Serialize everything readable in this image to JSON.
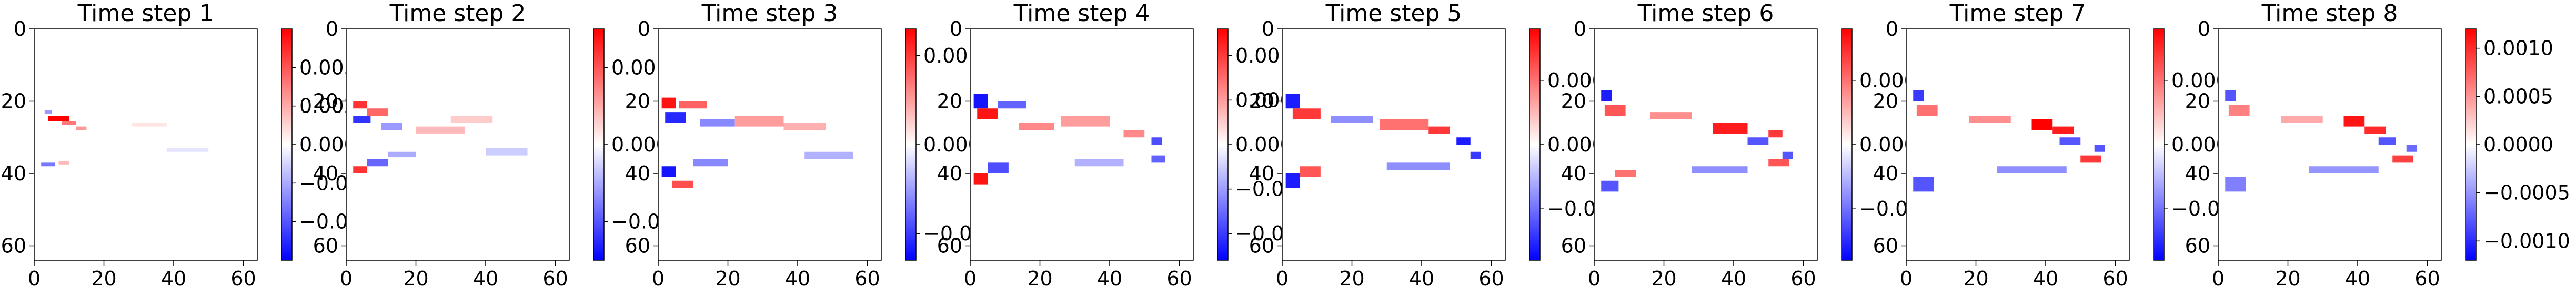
{
  "chart_data": {
    "type": "heatmap",
    "colormap": "bwr",
    "colors": {
      "negative": "#0000ff",
      "zero": "#ffffff",
      "positive": "#ff0000"
    },
    "xlim": [
      0,
      64
    ],
    "ylim": [
      64,
      0
    ],
    "x_ticks": [
      0,
      20,
      40,
      60
    ],
    "y_ticks": [
      0,
      20,
      40,
      60
    ],
    "grid": false,
    "panels": [
      {
        "title": "Time step 1",
        "vmin": -0.0075,
        "vmax": 0.0075,
        "colorbar_ticks": [
          5000,
          2500,
          0,
          -2500,
          -5000
        ],
        "colorbar_tick_labels": [
          "0.0050",
          "0.0025",
          "0.0000",
          "−0.0025",
          "−0.0050"
        ],
        "features": [
          {
            "x": 4,
            "y": 24,
            "w": 6,
            "h": 1.5,
            "v": 0.0075
          },
          {
            "x": 8,
            "y": 25.5,
            "w": 4,
            "h": 1,
            "v": 0.004
          },
          {
            "x": 12,
            "y": 27,
            "w": 3,
            "h": 1,
            "v": 0.003
          },
          {
            "x": 3,
            "y": 22.5,
            "w": 2,
            "h": 1,
            "v": -0.003
          },
          {
            "x": 2,
            "y": 37,
            "w": 4,
            "h": 1,
            "v": -0.004
          },
          {
            "x": 7,
            "y": 36.5,
            "w": 3,
            "h": 1,
            "v": 0.002
          },
          {
            "x": 28,
            "y": 26,
            "w": 10,
            "h": 1,
            "v": 0.0008
          },
          {
            "x": 38,
            "y": 33,
            "w": 12,
            "h": 1,
            "v": -0.0008
          }
        ]
      },
      {
        "title": "Time step 2",
        "vmin": -0.0015,
        "vmax": 0.0015,
        "colorbar_ticks": [
          10,
          0,
          -10
        ],
        "colorbar_tick_labels": [
          "0.001",
          "0.000",
          "−0.001"
        ],
        "features": [
          {
            "x": 2,
            "y": 20,
            "w": 4,
            "h": 2,
            "v": 0.0012
          },
          {
            "x": 2,
            "y": 24,
            "w": 5,
            "h": 2,
            "v": -0.0012
          },
          {
            "x": 6,
            "y": 22,
            "w": 6,
            "h": 2,
            "v": 0.0009
          },
          {
            "x": 10,
            "y": 26,
            "w": 6,
            "h": 2,
            "v": -0.0006
          },
          {
            "x": 2,
            "y": 38,
            "w": 4,
            "h": 2,
            "v": 0.0012
          },
          {
            "x": 6,
            "y": 36,
            "w": 6,
            "h": 2,
            "v": -0.0009
          },
          {
            "x": 12,
            "y": 34,
            "w": 8,
            "h": 1.5,
            "v": -0.0005
          },
          {
            "x": 20,
            "y": 27,
            "w": 14,
            "h": 2,
            "v": 0.0004
          },
          {
            "x": 30,
            "y": 24,
            "w": 12,
            "h": 2,
            "v": 0.0003
          },
          {
            "x": 40,
            "y": 33,
            "w": 12,
            "h": 2,
            "v": -0.0003
          }
        ]
      },
      {
        "title": "Time step 3",
        "vmin": -0.0013,
        "vmax": 0.0013,
        "colorbar_ticks": [
          10,
          0,
          -10
        ],
        "colorbar_tick_labels": [
          "0.0010",
          "0.0000",
          "−0.0010"
        ],
        "features": [
          {
            "x": 1,
            "y": 19,
            "w": 4,
            "h": 3,
            "v": 0.0012
          },
          {
            "x": 2,
            "y": 23,
            "w": 6,
            "h": 3,
            "v": -0.0011
          },
          {
            "x": 6,
            "y": 20,
            "w": 8,
            "h": 2,
            "v": 0.0008
          },
          {
            "x": 12,
            "y": 25,
            "w": 10,
            "h": 2,
            "v": -0.0006
          },
          {
            "x": 1,
            "y": 38,
            "w": 4,
            "h": 3,
            "v": -0.0012
          },
          {
            "x": 4,
            "y": 42,
            "w": 6,
            "h": 2,
            "v": 0.0009
          },
          {
            "x": 10,
            "y": 36,
            "w": 10,
            "h": 2,
            "v": -0.0006
          },
          {
            "x": 22,
            "y": 24,
            "w": 14,
            "h": 3,
            "v": 0.0005
          },
          {
            "x": 36,
            "y": 26,
            "w": 12,
            "h": 2,
            "v": 0.0004
          },
          {
            "x": 42,
            "y": 34,
            "w": 14,
            "h": 2,
            "v": -0.0004
          }
        ]
      },
      {
        "title": "Time step 4",
        "vmin": -0.0013,
        "vmax": 0.0013,
        "colorbar_ticks": [
          10,
          5,
          0,
          -5,
          -10
        ],
        "colorbar_tick_labels": [
          "0.0010",
          "0.0005",
          "0.0000",
          "−0.0005",
          "−0.0010"
        ],
        "features": [
          {
            "x": 1,
            "y": 18,
            "w": 4,
            "h": 4,
            "v": -0.0012
          },
          {
            "x": 2,
            "y": 22,
            "w": 6,
            "h": 3,
            "v": 0.0012
          },
          {
            "x": 8,
            "y": 20,
            "w": 8,
            "h": 2,
            "v": -0.0008
          },
          {
            "x": 1,
            "y": 40,
            "w": 4,
            "h": 3,
            "v": 0.0012
          },
          {
            "x": 5,
            "y": 37,
            "w": 6,
            "h": 3,
            "v": -0.0009
          },
          {
            "x": 14,
            "y": 26,
            "w": 10,
            "h": 2,
            "v": 0.0006
          },
          {
            "x": 26,
            "y": 24,
            "w": 14,
            "h": 3,
            "v": 0.0005
          },
          {
            "x": 44,
            "y": 28,
            "w": 6,
            "h": 2,
            "v": 0.0006
          },
          {
            "x": 52,
            "y": 30,
            "w": 3,
            "h": 2,
            "v": -0.0009
          },
          {
            "x": 52,
            "y": 35,
            "w": 4,
            "h": 2,
            "v": -0.0008
          },
          {
            "x": 30,
            "y": 36,
            "w": 14,
            "h": 2,
            "v": -0.0004
          }
        ]
      },
      {
        "title": "Time step 5",
        "vmin": -0.0009,
        "vmax": 0.0009,
        "colorbar_ticks": [
          5,
          0,
          -5
        ],
        "colorbar_tick_labels": [
          "0.0005",
          "0.0000",
          "−0.0005"
        ],
        "features": [
          {
            "x": 1,
            "y": 18,
            "w": 4,
            "h": 4,
            "v": -0.0008
          },
          {
            "x": 3,
            "y": 22,
            "w": 8,
            "h": 3,
            "v": 0.0007
          },
          {
            "x": 1,
            "y": 40,
            "w": 4,
            "h": 4,
            "v": -0.0008
          },
          {
            "x": 5,
            "y": 38,
            "w": 6,
            "h": 3,
            "v": 0.0006
          },
          {
            "x": 14,
            "y": 24,
            "w": 12,
            "h": 2,
            "v": -0.0004
          },
          {
            "x": 28,
            "y": 25,
            "w": 14,
            "h": 3,
            "v": 0.0005
          },
          {
            "x": 42,
            "y": 27,
            "w": 6,
            "h": 2,
            "v": 0.0007
          },
          {
            "x": 50,
            "y": 30,
            "w": 4,
            "h": 2,
            "v": -0.0008
          },
          {
            "x": 54,
            "y": 34,
            "w": 3,
            "h": 2,
            "v": -0.0007
          },
          {
            "x": 30,
            "y": 37,
            "w": 18,
            "h": 2,
            "v": -0.0004
          }
        ]
      },
      {
        "title": "Time step 6",
        "vmin": -0.0009,
        "vmax": 0.0009,
        "colorbar_ticks": [
          5,
          0,
          -5
        ],
        "colorbar_tick_labels": [
          "0.0005",
          "0.0000",
          "−0.0005"
        ],
        "features": [
          {
            "x": 2,
            "y": 17,
            "w": 3,
            "h": 3,
            "v": -0.0008
          },
          {
            "x": 3,
            "y": 21,
            "w": 6,
            "h": 3,
            "v": 0.0006
          },
          {
            "x": 2,
            "y": 42,
            "w": 5,
            "h": 3,
            "v": -0.0006
          },
          {
            "x": 6,
            "y": 39,
            "w": 6,
            "h": 2,
            "v": 0.0005
          },
          {
            "x": 16,
            "y": 23,
            "w": 12,
            "h": 2,
            "v": 0.0004
          },
          {
            "x": 34,
            "y": 26,
            "w": 10,
            "h": 3,
            "v": 0.0008
          },
          {
            "x": 44,
            "y": 30,
            "w": 6,
            "h": 2,
            "v": -0.0006
          },
          {
            "x": 50,
            "y": 28,
            "w": 4,
            "h": 2,
            "v": 0.0007
          },
          {
            "x": 50,
            "y": 36,
            "w": 6,
            "h": 2,
            "v": 0.0006
          },
          {
            "x": 54,
            "y": 34,
            "w": 3,
            "h": 2,
            "v": -0.0006
          },
          {
            "x": 28,
            "y": 38,
            "w": 16,
            "h": 2,
            "v": -0.0004
          }
        ]
      },
      {
        "title": "Time step 7",
        "vmin": -0.0009,
        "vmax": 0.0009,
        "colorbar_ticks": [
          5,
          0,
          -5
        ],
        "colorbar_tick_labels": [
          "0.0005",
          "0.0000",
          "−0.0005"
        ],
        "features": [
          {
            "x": 2,
            "y": 17,
            "w": 3,
            "h": 3,
            "v": -0.0007
          },
          {
            "x": 3,
            "y": 21,
            "w": 6,
            "h": 3,
            "v": 0.0005
          },
          {
            "x": 2,
            "y": 41,
            "w": 6,
            "h": 4,
            "v": -0.0006
          },
          {
            "x": 18,
            "y": 24,
            "w": 12,
            "h": 2,
            "v": 0.0004
          },
          {
            "x": 36,
            "y": 25,
            "w": 6,
            "h": 3,
            "v": 0.0009
          },
          {
            "x": 42,
            "y": 27,
            "w": 6,
            "h": 2,
            "v": 0.0008
          },
          {
            "x": 44,
            "y": 30,
            "w": 6,
            "h": 2,
            "v": -0.0006
          },
          {
            "x": 50,
            "y": 35,
            "w": 6,
            "h": 2,
            "v": 0.0007
          },
          {
            "x": 54,
            "y": 32,
            "w": 3,
            "h": 2,
            "v": -0.0006
          },
          {
            "x": 26,
            "y": 38,
            "w": 20,
            "h": 2,
            "v": -0.0004
          }
        ]
      },
      {
        "title": "Time step 8",
        "vmin": -0.0012,
        "vmax": 0.0012,
        "colorbar_ticks": [
          10,
          5,
          0,
          -5,
          -10
        ],
        "colorbar_tick_labels": [
          "0.0010",
          "0.0005",
          "0.0000",
          "−0.0005",
          "−0.0010"
        ],
        "features": [
          {
            "x": 2,
            "y": 17,
            "w": 3,
            "h": 3,
            "v": -0.0008
          },
          {
            "x": 3,
            "y": 21,
            "w": 6,
            "h": 3,
            "v": 0.0006
          },
          {
            "x": 2,
            "y": 41,
            "w": 6,
            "h": 4,
            "v": -0.0006
          },
          {
            "x": 18,
            "y": 24,
            "w": 12,
            "h": 2,
            "v": 0.0004
          },
          {
            "x": 36,
            "y": 24,
            "w": 6,
            "h": 3,
            "v": 0.0011
          },
          {
            "x": 42,
            "y": 27,
            "w": 6,
            "h": 2,
            "v": 0.001
          },
          {
            "x": 46,
            "y": 30,
            "w": 5,
            "h": 2,
            "v": -0.0008
          },
          {
            "x": 50,
            "y": 35,
            "w": 6,
            "h": 2,
            "v": 0.0009
          },
          {
            "x": 54,
            "y": 32,
            "w": 3,
            "h": 2,
            "v": -0.0007
          },
          {
            "x": 26,
            "y": 38,
            "w": 20,
            "h": 2,
            "v": -0.0005
          }
        ]
      }
    ]
  }
}
